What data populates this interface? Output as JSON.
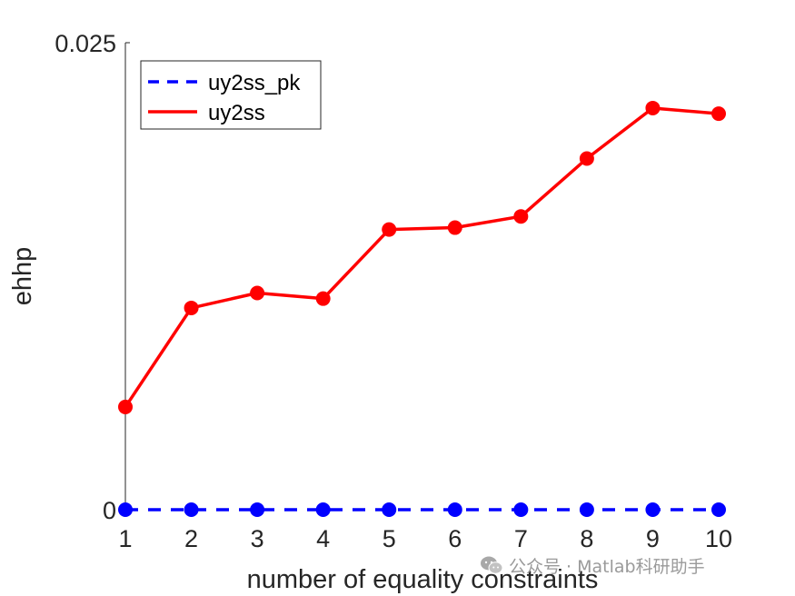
{
  "chart_data": {
    "type": "line",
    "x": [
      1,
      2,
      3,
      4,
      5,
      6,
      7,
      8,
      9,
      10
    ],
    "xlim": [
      1,
      10
    ],
    "ylim": [
      0,
      0.025
    ],
    "y_ticks": [
      "0",
      "0.025"
    ],
    "xlabel": "number of equality constraints",
    "ylabel": "ehhp",
    "grid": false,
    "legend_position": "top-left",
    "series": [
      {
        "name": "uy2ss_pk",
        "color": "#0000ff",
        "line_style": "dashed",
        "marker": "filled-circle",
        "values": [
          0,
          0,
          0,
          0,
          0,
          0,
          0,
          0,
          0,
          0
        ]
      },
      {
        "name": "uy2ss",
        "color": "#ff0000",
        "line_style": "solid",
        "marker": "filled-circle",
        "values": [
          0.0055,
          0.0108,
          0.0116,
          0.0113,
          0.015,
          0.0151,
          0.0157,
          0.0188,
          0.0215,
          0.0212
        ]
      }
    ]
  },
  "watermark": {
    "icon": "wechat-icon",
    "text": "公众号 · Matlab科研助手"
  }
}
